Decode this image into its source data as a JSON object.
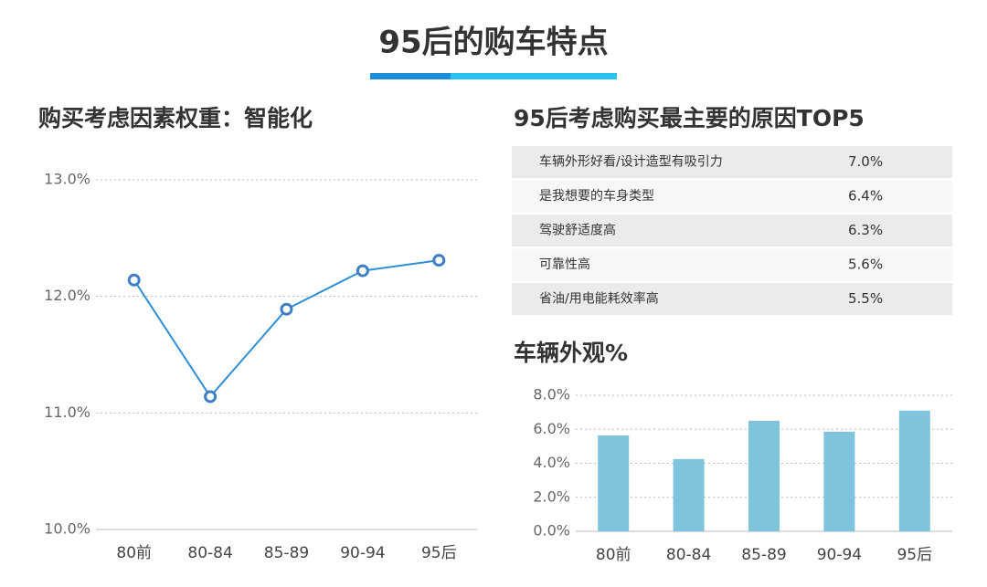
{
  "title": "95后的购车特点",
  "chart_data": [
    {
      "type": "line",
      "title": "购买考虑因素权重：智能化",
      "categories": [
        "80前",
        "80-84",
        "85-89",
        "90-94",
        "95后"
      ],
      "values": [
        12.14,
        11.14,
        11.89,
        12.22,
        12.31
      ],
      "color": "#2e8fd4",
      "ylim": [
        10,
        13
      ],
      "yticks": [
        {
          "value": 10,
          "label": "10.0%"
        },
        {
          "value": 11,
          "label": "11.0%"
        },
        {
          "value": 12,
          "label": "12.0%"
        },
        {
          "value": 13,
          "label": "13.0%"
        }
      ],
      "grid": true
    },
    {
      "type": "bar",
      "title": "车辆外观%",
      "categories": [
        "80前",
        "80-84",
        "85-89",
        "90-94",
        "95后"
      ],
      "values": [
        5.64,
        4.25,
        6.5,
        5.86,
        7.1
      ],
      "color": "#7fc4dc",
      "ylim": [
        0,
        8
      ],
      "yticks": [
        {
          "value": 0,
          "label": "0.0%"
        },
        {
          "value": 2,
          "label": "2.0%"
        },
        {
          "value": 4,
          "label": "4.0%"
        },
        {
          "value": 6,
          "label": "6.0%"
        },
        {
          "value": 8,
          "label": "8.0%"
        }
      ],
      "grid": true
    }
  ],
  "table": {
    "title": "95后考虑购买最主要的原因TOP5",
    "rows": [
      [
        "车辆外形好看/设计造型有吸引力",
        "7.0%"
      ],
      [
        "是我想要的车身类型",
        "6.4%"
      ],
      [
        "驾驶舒适度高",
        "6.3%"
      ],
      [
        "可靠性高",
        "5.6%"
      ],
      [
        "省油/用电能耗效率高",
        "5.5%"
      ]
    ]
  }
}
